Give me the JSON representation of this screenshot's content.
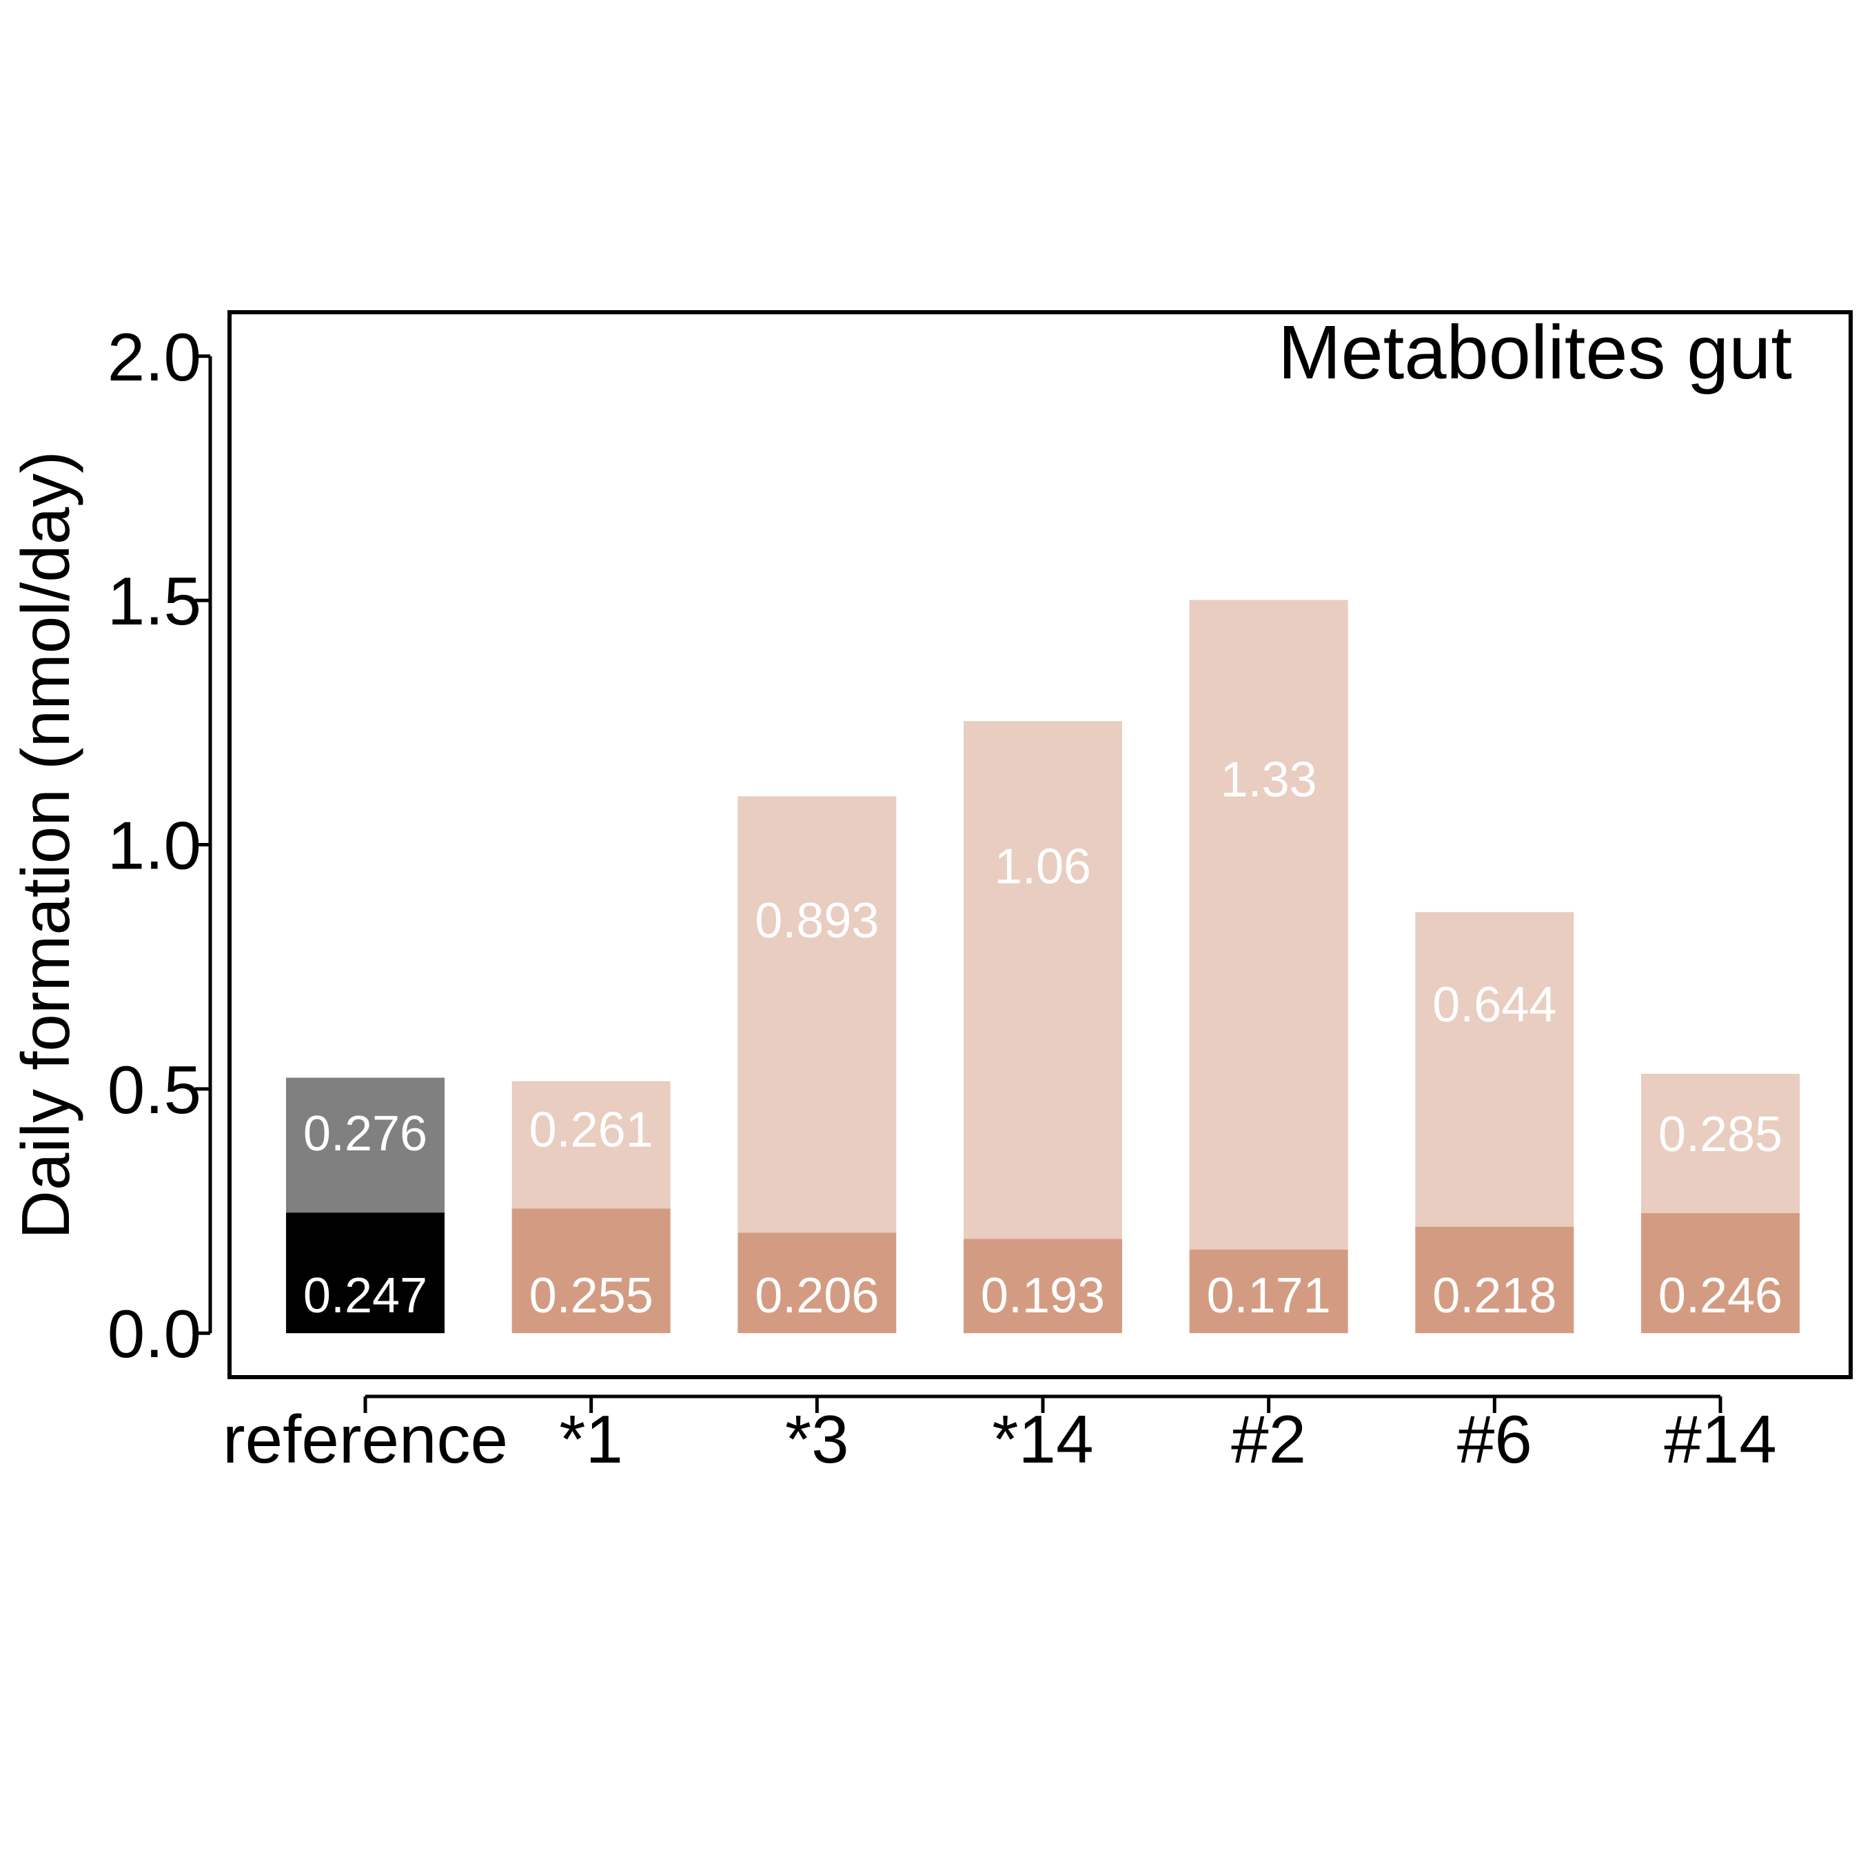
{
  "chart_data": {
    "type": "bar",
    "stacked": true,
    "title": "Metabolites gut",
    "xlabel": "",
    "ylabel": "Daily formation (nmol/day)",
    "ylim": [
      -0.09,
      2.09
    ],
    "yticks": [
      "0.0",
      "0.5",
      "1.0",
      "1.5",
      "2.0"
    ],
    "categories": [
      "reference",
      "*1",
      "*3",
      "*14",
      "#2",
      "#6",
      "#14"
    ],
    "series": [
      {
        "values": [
          0.247,
          0.255,
          0.206,
          0.193,
          0.171,
          0.218,
          0.246
        ],
        "labels": [
          "0.247",
          "0.255",
          "0.206",
          "0.193",
          "0.171",
          "0.218",
          "0.246"
        ],
        "colors": [
          "#000000",
          "#d39c82",
          "#d39c82",
          "#d39c82",
          "#d39c82",
          "#d39c82",
          "#d39c82"
        ]
      },
      {
        "values": [
          0.276,
          0.261,
          0.893,
          1.06,
          1.33,
          0.644,
          0.285
        ],
        "labels": [
          "0.276",
          "0.261",
          "0.893",
          "1.06",
          "1.33",
          "0.644",
          "0.285"
        ],
        "colors": [
          "#808080",
          "#e8cdc0",
          "#e8cdc0",
          "#e8cdc0",
          "#e8cdc0",
          "#e8cdc0",
          "#e8cdc0"
        ]
      }
    ],
    "grid": false,
    "legend": "none",
    "label_color": "#ffffff"
  }
}
